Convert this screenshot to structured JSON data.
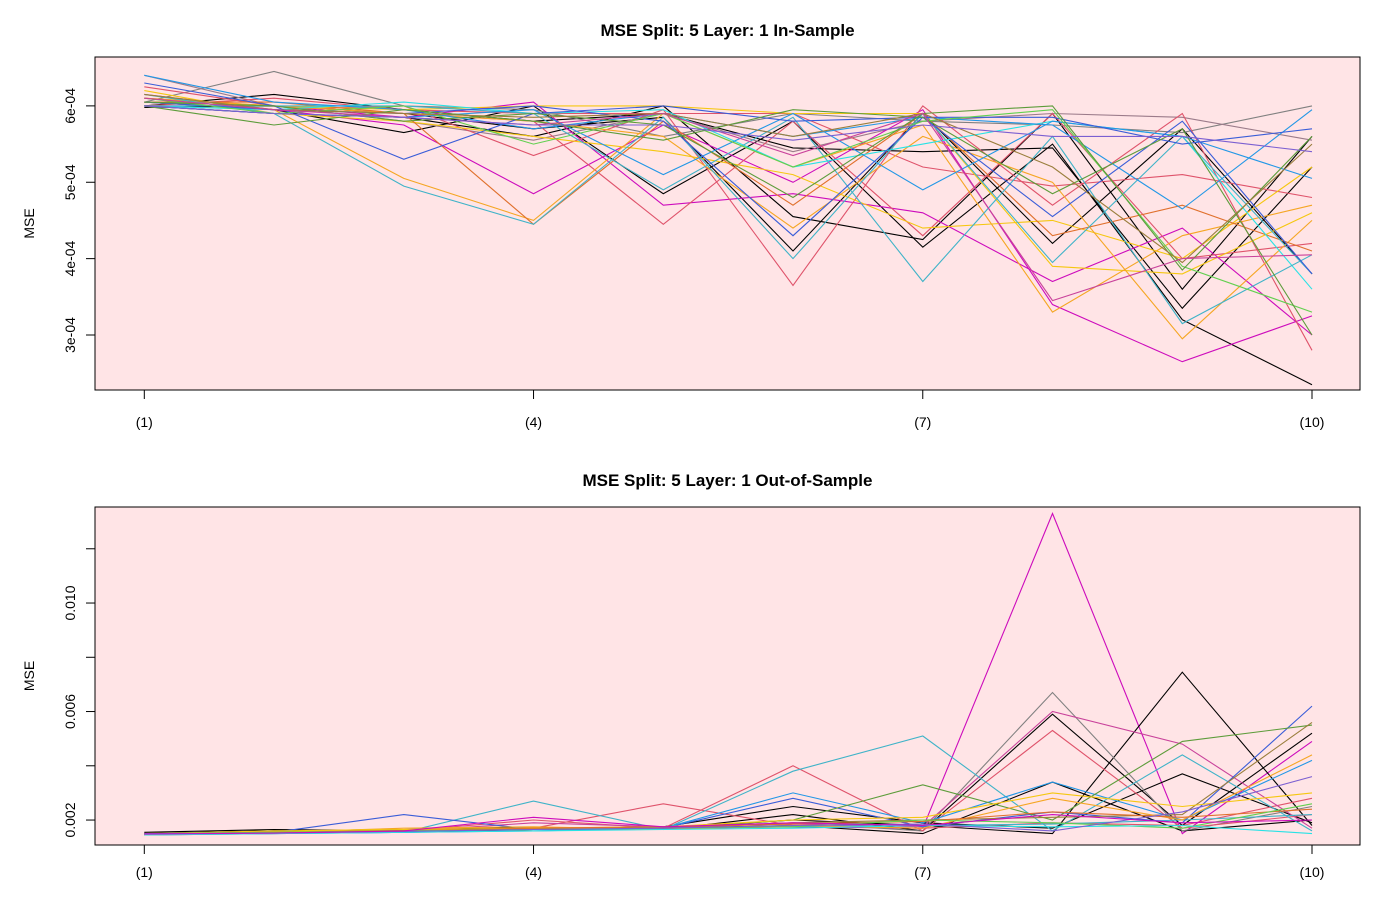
{
  "chart_data": [
    {
      "type": "line",
      "title": "MSE Split: 5 Layer: 1 In-Sample",
      "ylabel": "MSE",
      "xlabel": "",
      "background": "#ffe4e6",
      "x_ticks": [
        {
          "x": 1,
          "label": "(1)"
        },
        {
          "x": 4,
          "label": "(4)"
        },
        {
          "x": 7,
          "label": "(7)"
        },
        {
          "x": 10,
          "label": "(10)"
        }
      ],
      "y_ticks": [
        {
          "y": 0.0003,
          "label": "3e-04"
        },
        {
          "y": 0.0004,
          "label": "4e-04"
        },
        {
          "y": 0.0005,
          "label": "5e-04"
        },
        {
          "y": 0.0006,
          "label": "6e-04"
        }
      ],
      "xlim": [
        0.62,
        10.37
      ],
      "ylim": [
        0.000228,
        0.000664
      ],
      "grid": false,
      "legend": "none",
      "x": [
        1,
        2,
        3,
        4,
        5,
        6,
        7,
        8,
        9,
        10
      ],
      "series": [
        {
          "color": "#000000",
          "values": [
            0.0006,
            0.000615,
            0.000595,
            0.00058,
            0.00059,
            0.000545,
            0.00054,
            0.000545,
            0.000335,
            0.00052
          ]
        },
        {
          "color": "#000000",
          "values": [
            0.000598,
            0.0006,
            0.00059,
            0.00057,
            0.000585,
            0.00041,
            0.00059,
            0.00042,
            0.00057,
            0.00038
          ]
        },
        {
          "color": "#000000",
          "values": [
            0.000605,
            0.000595,
            0.000565,
            0.0006,
            0.000485,
            0.00058,
            0.000415,
            0.00055,
            0.00032,
            0.000235
          ]
        },
        {
          "color": "#000000",
          "values": [
            0.0006,
            0.00059,
            0.000585,
            0.00056,
            0.0006,
            0.000455,
            0.000425,
            0.00059,
            0.00036,
            0.00056
          ]
        },
        {
          "color": "#808080",
          "values": [
            0.000605,
            0.000645,
            0.0006,
            0.000595,
            0.00056,
            0.00059,
            0.00058,
            0.000575,
            0.000565,
            0.0006
          ]
        },
        {
          "color": "#9b7b8a",
          "values": [
            0.00064,
            0.0006,
            0.00058,
            0.000555,
            0.00059,
            0.00054,
            0.00058,
            0.00059,
            0.000585,
            0.000555
          ]
        },
        {
          "color": "#cd0bbc",
          "values": [
            0.00061,
            0.000595,
            0.000575,
            0.000485,
            0.000575,
            0.0005,
            0.000595,
            0.00034,
            0.000265,
            0.000325
          ]
        },
        {
          "color": "#cd0bbc",
          "values": [
            0.0006,
            0.0006,
            0.000585,
            0.000605,
            0.00047,
            0.000485,
            0.00046,
            0.00037,
            0.00044,
            0.0003
          ]
        },
        {
          "color": "#df536b",
          "values": [
            0.000615,
            0.000595,
            0.0006,
            0.000535,
            0.000595,
            0.000365,
            0.0006,
            0.00047,
            0.00059,
            0.00028
          ]
        },
        {
          "color": "#df536b",
          "values": [
            0.000625,
            0.0006,
            0.00059,
            0.00058,
            0.000445,
            0.00058,
            0.00043,
            0.00059,
            0.0004,
            0.00042
          ]
        },
        {
          "color": "#df536b",
          "values": [
            0.0006,
            0.00061,
            0.000595,
            0.00059,
            0.00059,
            0.00059,
            0.00052,
            0.000495,
            0.00051,
            0.00048
          ]
        },
        {
          "color": "#f5c710",
          "values": [
            0.00061,
            0.0006,
            0.000595,
            0.0006,
            0.0006,
            0.00059,
            0.00059,
            0.00039,
            0.00038,
            0.00046
          ]
        },
        {
          "color": "#f5c710",
          "values": [
            0.00062,
            0.00059,
            0.00058,
            0.00056,
            0.00054,
            0.00051,
            0.00044,
            0.00045,
            0.0004,
            0.00052
          ]
        },
        {
          "color": "#f5a623",
          "values": [
            0.000605,
            0.000595,
            0.000505,
            0.00045,
            0.00059,
            0.00052,
            0.000575,
            0.00033,
            0.00043,
            0.00047
          ]
        },
        {
          "color": "#f5a623",
          "values": [
            0.00061,
            0.0006,
            0.00059,
            0.00058,
            0.00056,
            0.00044,
            0.00056,
            0.0005,
            0.000295,
            0.00045
          ]
        },
        {
          "color": "#e0702c",
          "values": [
            0.000605,
            0.000605,
            0.00059,
            0.000445,
            0.00058,
            0.00047,
            0.00059,
            0.00043,
            0.00047,
            0.00041
          ]
        },
        {
          "color": "#28e2e5",
          "values": [
            0.0006,
            0.000595,
            0.000605,
            0.00059,
            0.000595,
            0.00052,
            0.00055,
            0.00058,
            0.00056,
            0.00036
          ]
        },
        {
          "color": "#3fb3c8",
          "values": [
            0.000615,
            0.00059,
            0.000495,
            0.000445,
            0.000585,
            0.0004,
            0.00059,
            0.000395,
            0.00056,
            0.00038
          ]
        },
        {
          "color": "#3fb3c8",
          "values": [
            0.0006,
            0.0006,
            0.0006,
            0.00059,
            0.00049,
            0.000585,
            0.00037,
            0.00056,
            0.000315,
            0.000405
          ]
        },
        {
          "color": "#2297e6",
          "values": [
            0.00064,
            0.000605,
            0.000595,
            0.00057,
            0.00059,
            0.00056,
            0.000585,
            0.000575,
            0.000465,
            0.000595
          ]
        },
        {
          "color": "#2297e6",
          "values": [
            0.0006,
            0.00059,
            0.000585,
            0.000595,
            0.00051,
            0.00059,
            0.00049,
            0.00058,
            0.00056,
            0.000505
          ]
        },
        {
          "color": "#3a5dd8",
          "values": [
            0.00063,
            0.0006,
            0.00053,
            0.00059,
            0.0006,
            0.00058,
            0.000585,
            0.000585,
            0.00055,
            0.00057
          ]
        },
        {
          "color": "#3a5dd8",
          "values": [
            0.000605,
            0.000595,
            0.00059,
            0.0006,
            0.00058,
            0.00043,
            0.000585,
            0.000455,
            0.00058,
            0.00038
          ]
        },
        {
          "color": "#61d04f",
          "values": [
            0.00061,
            0.00059,
            0.0006,
            0.00055,
            0.00059,
            0.00052,
            0.00058,
            0.000595,
            0.00039,
            0.00033
          ]
        },
        {
          "color": "#5c9c3a",
          "values": [
            0.0006,
            0.000575,
            0.000595,
            0.00058,
            0.000555,
            0.000595,
            0.000585,
            0.000485,
            0.00057,
            0.0003
          ]
        },
        {
          "color": "#5c9c3a",
          "values": [
            0.000605,
            0.0006,
            0.00058,
            0.00059,
            0.000575,
            0.00048,
            0.00059,
            0.0006,
            0.000385,
            0.00056
          ]
        },
        {
          "color": "#9a7e3c",
          "values": [
            0.000615,
            0.000595,
            0.00059,
            0.000585,
            0.00059,
            0.00056,
            0.00059,
            0.00052,
            0.000395,
            0.00055
          ]
        },
        {
          "color": "#c9429b",
          "values": [
            0.00061,
            0.000595,
            0.000585,
            0.000575,
            0.00059,
            0.000535,
            0.00059,
            0.000345,
            0.0004,
            0.000405
          ]
        },
        {
          "color": "#7b5fd1",
          "values": [
            0.0006,
            0.00059,
            0.000585,
            0.000575,
            0.000575,
            0.000555,
            0.000575,
            0.00056,
            0.00056,
            0.00054
          ]
        }
      ]
    },
    {
      "type": "line",
      "title": "MSE Split: 5 Layer: 1 Out-of-Sample",
      "ylabel": "MSE",
      "xlabel": "",
      "background": "#ffe4e6",
      "x_ticks": [
        {
          "x": 1,
          "label": "(1)"
        },
        {
          "x": 4,
          "label": "(4)"
        },
        {
          "x": 7,
          "label": "(7)"
        },
        {
          "x": 10,
          "label": "(10)"
        }
      ],
      "y_ticks": [
        {
          "y": 0.002,
          "label": "0.002"
        },
        {
          "y": 0.004,
          "label": ""
        },
        {
          "y": 0.006,
          "label": "0.006"
        },
        {
          "y": 0.008,
          "label": ""
        },
        {
          "y": 0.01,
          "label": "0.010"
        },
        {
          "y": 0.012,
          "label": ""
        }
      ],
      "xlim": [
        0.62,
        10.37
      ],
      "ylim": [
        0.00108,
        0.01354
      ],
      "grid": false,
      "legend": "none",
      "x": [
        1,
        2,
        3,
        4,
        5,
        6,
        7,
        8,
        9,
        10
      ],
      "series": [
        {
          "color": "#cd0bbc",
          "values": [
            0.0015,
            0.00158,
            0.0016,
            0.0017,
            0.00168,
            0.00175,
            0.0017,
            0.0133,
            0.0015,
            0.0049
          ]
        },
        {
          "color": "#000000",
          "values": [
            0.00155,
            0.00165,
            0.0016,
            0.00168,
            0.0017,
            0.002,
            0.0018,
            0.0015,
            0.00745,
            0.0018
          ]
        },
        {
          "color": "#000000",
          "values": [
            0.0015,
            0.0016,
            0.00165,
            0.00172,
            0.00165,
            0.0022,
            0.0016,
            0.0059,
            0.0018,
            0.0052
          ]
        },
        {
          "color": "#000000",
          "values": [
            0.00145,
            0.00155,
            0.0016,
            0.00165,
            0.0017,
            0.0018,
            0.0015,
            0.0034,
            0.0016,
            0.002
          ]
        },
        {
          "color": "#000000",
          "values": [
            0.0015,
            0.0016,
            0.00155,
            0.00165,
            0.00175,
            0.0025,
            0.0019,
            0.0017,
            0.0037,
            0.0019
          ]
        },
        {
          "color": "#808080",
          "values": [
            0.00148,
            0.00158,
            0.00165,
            0.0017,
            0.00168,
            0.0019,
            0.0016,
            0.0067,
            0.0016,
            0.0025
          ]
        },
        {
          "color": "#df536b",
          "values": [
            0.00145,
            0.0015,
            0.0016,
            0.002,
            0.0017,
            0.004,
            0.0016,
            0.0053,
            0.0017,
            0.0022
          ]
        },
        {
          "color": "#df536b",
          "values": [
            0.0015,
            0.00155,
            0.0016,
            0.0017,
            0.0026,
            0.0018,
            0.0017,
            0.0019,
            0.0018,
            0.0028
          ]
        },
        {
          "color": "#c9429b",
          "values": [
            0.00148,
            0.00152,
            0.00158,
            0.0019,
            0.00175,
            0.00185,
            0.00175,
            0.006,
            0.0048,
            0.0017
          ]
        },
        {
          "color": "#3fb3c8",
          "values": [
            0.00145,
            0.0015,
            0.00155,
            0.0027,
            0.00165,
            0.0038,
            0.0051,
            0.0016,
            0.0044,
            0.0016
          ]
        },
        {
          "color": "#3fb3c8",
          "values": [
            0.0015,
            0.00155,
            0.0016,
            0.00165,
            0.0017,
            0.00175,
            0.0018,
            0.00185,
            0.002,
            0.0022
          ]
        },
        {
          "color": "#3a5dd8",
          "values": [
            0.0015,
            0.00155,
            0.0022,
            0.00165,
            0.0017,
            0.0028,
            0.00175,
            0.0023,
            0.0019,
            0.0062
          ]
        },
        {
          "color": "#2297e6",
          "values": [
            0.00148,
            0.0015,
            0.00155,
            0.0016,
            0.0017,
            0.003,
            0.0019,
            0.0034,
            0.002,
            0.0042
          ]
        },
        {
          "color": "#5c9c3a",
          "values": [
            0.0015,
            0.00155,
            0.0016,
            0.00165,
            0.0017,
            0.002,
            0.0033,
            0.002,
            0.0049,
            0.0055
          ]
        },
        {
          "color": "#9a7e3c",
          "values": [
            0.0015,
            0.00158,
            0.00162,
            0.00168,
            0.0017,
            0.0019,
            0.002,
            0.0021,
            0.0022,
            0.0056
          ]
        },
        {
          "color": "#f5a623",
          "values": [
            0.00145,
            0.00155,
            0.0017,
            0.00175,
            0.00165,
            0.0018,
            0.0017,
            0.0028,
            0.002,
            0.0044
          ]
        },
        {
          "color": "#f5c710",
          "values": [
            0.0015,
            0.0016,
            0.00165,
            0.0017,
            0.00175,
            0.002,
            0.0021,
            0.003,
            0.0025,
            0.003
          ]
        },
        {
          "color": "#e0702c",
          "values": [
            0.0015,
            0.00155,
            0.0016,
            0.0017,
            0.00175,
            0.00185,
            0.00195,
            0.0023,
            0.0021,
            0.0024
          ]
        },
        {
          "color": "#61d04f",
          "values": [
            0.0015,
            0.00155,
            0.0016,
            0.00165,
            0.0017,
            0.00175,
            0.002,
            0.0019,
            0.0017,
            0.0026
          ]
        },
        {
          "color": "#28e2e5",
          "values": [
            0.00145,
            0.0015,
            0.00155,
            0.0016,
            0.00165,
            0.0017,
            0.0018,
            0.00175,
            0.0018,
            0.0015
          ]
        },
        {
          "color": "#7b5fd1",
          "values": [
            0.0015,
            0.00152,
            0.00158,
            0.00165,
            0.0017,
            0.0018,
            0.00185,
            0.0016,
            0.0023,
            0.0036
          ]
        },
        {
          "color": "#cd0bbc",
          "values": [
            0.00148,
            0.00152,
            0.0016,
            0.0021,
            0.00175,
            0.0019,
            0.0018,
            0.0022,
            0.0019,
            0.002
          ]
        }
      ]
    }
  ]
}
